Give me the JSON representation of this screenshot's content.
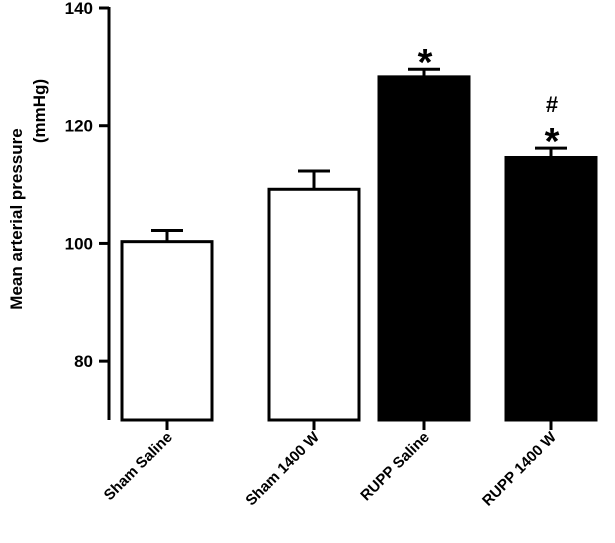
{
  "chart_data": {
    "type": "bar",
    "title": "",
    "xlabel": "",
    "ylabel_line1": "Mean arterial pressure",
    "ylabel_line2": "(mmHg)",
    "ylim": [
      70,
      140
    ],
    "yticks": [
      80,
      100,
      120,
      140
    ],
    "grid": false,
    "categories": [
      "Sham Saline",
      "Sham 1400 W",
      "RUPP Saline",
      "RUPP 1400 W"
    ],
    "values": [
      100.3,
      109.2,
      128.3,
      114.6
    ],
    "errors": [
      1.9,
      3.1,
      1.3,
      1.6
    ],
    "fills": [
      "#ffffff",
      "#ffffff",
      "#000000",
      "#000000"
    ],
    "annotations": [
      {
        "category_index": 2,
        "lines": [
          "*"
        ]
      },
      {
        "category_index": 3,
        "lines": [
          "#",
          "*"
        ]
      }
    ]
  }
}
